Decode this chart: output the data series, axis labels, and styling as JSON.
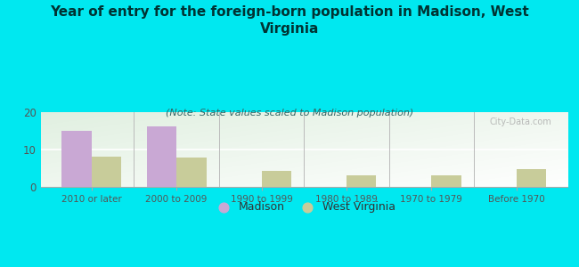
{
  "title": "Year of entry for the foreign-born population in Madison, West\nVirginia",
  "subtitle": "(Note: State values scaled to Madison population)",
  "categories": [
    "2010 or later",
    "2000 to 2009",
    "1990 to 1999",
    "1980 to 1989",
    "1970 to 1979",
    "Before 1970"
  ],
  "madison_values": [
    15.0,
    16.2,
    0,
    0,
    0,
    0
  ],
  "wv_values": [
    8.2,
    7.8,
    4.2,
    3.0,
    3.0,
    4.8
  ],
  "madison_color": "#c9a8d4",
  "wv_color": "#c8cc9a",
  "background_color": "#00e8f0",
  "ylim": [
    0,
    20
  ],
  "yticks": [
    0,
    10,
    20
  ],
  "bar_width": 0.35,
  "watermark": "City-Data.com",
  "title_fontsize": 11,
  "subtitle_fontsize": 8
}
